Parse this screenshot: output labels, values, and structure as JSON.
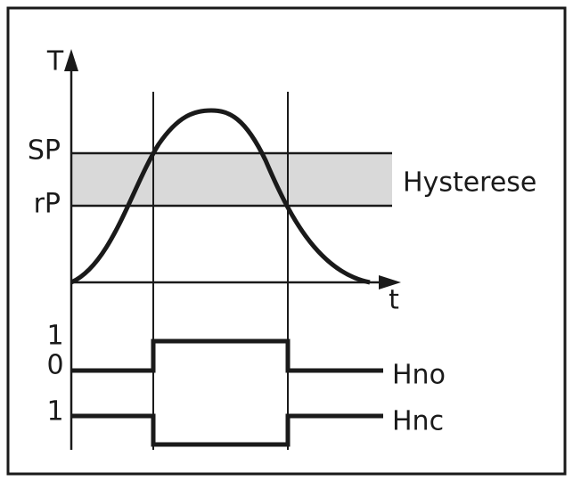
{
  "diagram": {
    "y_axis_label": "T",
    "x_axis_label": "t",
    "levels": {
      "upper": "SP",
      "lower": "rP"
    },
    "band_label": "Hysterese",
    "outputs": [
      {
        "name": "Hno",
        "high_label": "1",
        "low_label": "0"
      },
      {
        "name": "Hnc",
        "high_label": "1"
      }
    ]
  }
}
